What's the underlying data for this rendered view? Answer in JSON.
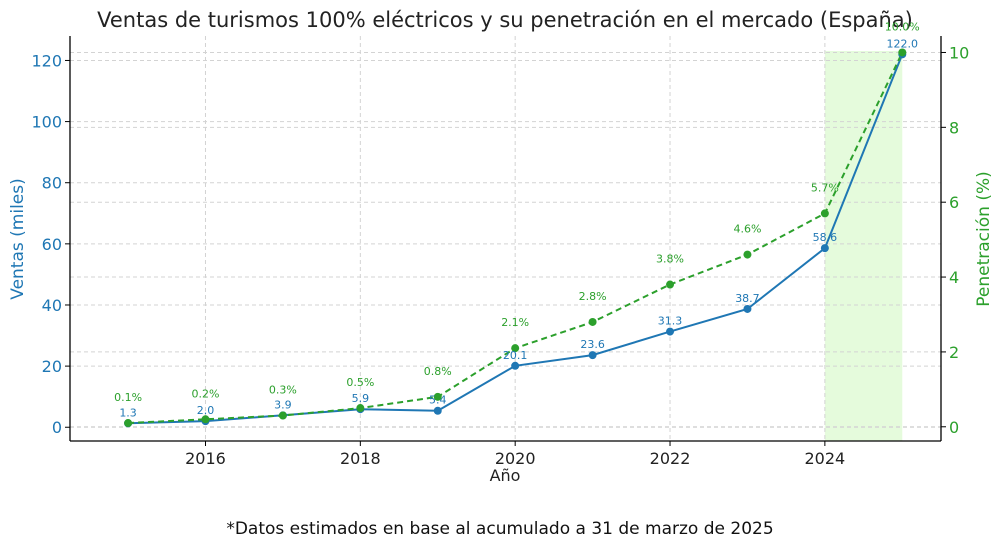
{
  "chart_data": {
    "type": "line",
    "title": "Ventas de turismos 100% eléctricos y su penetración en el mercado (España)",
    "xlabel": "Año",
    "x": [
      2015,
      2016,
      2017,
      2018,
      2019,
      2020,
      2021,
      2022,
      2023,
      2024,
      2025
    ],
    "xlim": [
      2014.25,
      2025.5
    ],
    "xticks": [
      "2016",
      "2018",
      "2020",
      "2022",
      "2024"
    ],
    "grid": true,
    "highlight_range": [
      2024,
      2025
    ],
    "series": [
      {
        "name": "Ventas",
        "axis": "left",
        "ylabel": "Ventas (miles)",
        "ylim": [
          -4.5,
          128
        ],
        "yticks": [
          "0",
          "20",
          "40",
          "60",
          "80",
          "100",
          "120"
        ],
        "values": [
          1.3,
          2.0,
          3.9,
          5.9,
          5.4,
          20.1,
          23.6,
          31.3,
          38.7,
          58.6,
          122.0
        ],
        "labels": [
          "1.3",
          "2.0",
          "3.9",
          "5.9",
          "5.4",
          "20.1",
          "23.6",
          "31.3",
          "38.7",
          "58.6",
          "122.0"
        ],
        "style": "solid"
      },
      {
        "name": "Penetración",
        "axis": "right",
        "ylabel": "Penetración (%)",
        "ylim": [
          -0.38,
          10.44
        ],
        "yticks": [
          "0",
          "2",
          "4",
          "6",
          "8",
          "10"
        ],
        "values": [
          0.1,
          0.2,
          0.3,
          0.5,
          0.8,
          2.1,
          2.8,
          3.8,
          4.6,
          5.7,
          10.0
        ],
        "labels": [
          "0.1%",
          "0.2%",
          "0.3%",
          "0.5%",
          "0.8%",
          "2.1%",
          "2.8%",
          "3.8%",
          "4.6%",
          "5.7%",
          "10.0%"
        ],
        "style": "dashed"
      }
    ],
    "colors": {
      "ventas": "#1f77b4",
      "penetracion": "#2ca02c",
      "highlight": "#e5fbdc",
      "axis": "#000000",
      "grid": "#d3d3d3",
      "text": "#222222"
    },
    "footnote": "*Datos estimados en base al acumulado a 31 de marzo de 2025"
  }
}
